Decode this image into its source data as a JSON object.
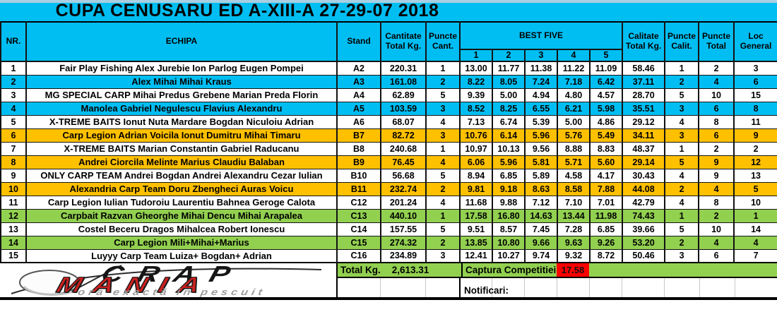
{
  "title": "CUPA CENUSARU ED A-XIII-A 27-29-07 2018",
  "colors": {
    "cyan": "#00BEF2",
    "yellow": "#FFC000",
    "green": "#92D050",
    "red": "#FF0000"
  },
  "header": {
    "nr": "NR.",
    "echipa": "ECHIPA",
    "stand": "Stand",
    "cantitate": "Cantitate Total Kg.",
    "puncte_cant": "Puncte Cant.",
    "best_five": "BEST FIVE",
    "best_cols": [
      "1",
      "2",
      "3",
      "4",
      "5"
    ],
    "calitate": "Calitate Total Kg.",
    "puncte_calit": "Puncte Calit.",
    "puncte_total": "Puncte Total",
    "loc_general": "Loc General"
  },
  "rows": [
    {
      "nr": "1",
      "team": "Fair Play Fishing  Alex Jurebie Ion Parlog Eugen Pompei",
      "stand": "A2",
      "total_kg": "220.31",
      "pct_cant": "1",
      "best": [
        "13.00",
        "11.77",
        "11.38",
        "11.22",
        "11.09"
      ],
      "calitate_kg": "58.46",
      "pct_calit": "1",
      "pct_total": "2",
      "loc": "3",
      "highlight": "none"
    },
    {
      "nr": "2",
      "team": "Alex Mihai Mihai Kraus",
      "stand": "A3",
      "total_kg": "161.08",
      "pct_cant": "2",
      "best": [
        "8.22",
        "8.05",
        "7.24",
        "7.18",
        "6.42"
      ],
      "calitate_kg": "37.11",
      "pct_calit": "2",
      "pct_total": "4",
      "loc": "6",
      "highlight": "cyan"
    },
    {
      "nr": "3",
      "team": "MG SPECIAL CARP Mihai Predus Grebene Marian Preda Florin",
      "stand": "A4",
      "total_kg": "62.89",
      "pct_cant": "5",
      "best": [
        "9.39",
        "5.00",
        "4.94",
        "4.80",
        "4.57"
      ],
      "calitate_kg": "28.70",
      "pct_calit": "5",
      "pct_total": "10",
      "loc": "15",
      "highlight": "none"
    },
    {
      "nr": "4",
      "team": "Manolea Gabriel Negulescu Flavius Alexandru",
      "stand": "A5",
      "total_kg": "103.59",
      "pct_cant": "3",
      "best": [
        "8.52",
        "8.25",
        "6.55",
        "6.21",
        "5.98"
      ],
      "calitate_kg": "35.51",
      "pct_calit": "3",
      "pct_total": "6",
      "loc": "8",
      "highlight": "cyan"
    },
    {
      "nr": "5",
      "team": "X-TREME BAITS Ionut Nuta Mardare Bogdan Niculoiu Adrian",
      "stand": "A6",
      "total_kg": "68.07",
      "pct_cant": "4",
      "best": [
        "7.13",
        "6.74",
        "5.39",
        "5.00",
        "4.86"
      ],
      "calitate_kg": "29.12",
      "pct_calit": "4",
      "pct_total": "8",
      "loc": "11",
      "highlight": "none"
    },
    {
      "nr": "6",
      "team": "Carp Legion Adrian Voicila Ionut Dumitru Mihai Timaru",
      "stand": "B7",
      "total_kg": "82.72",
      "pct_cant": "3",
      "best": [
        "10.76",
        "6.14",
        "5.96",
        "5.76",
        "5.49"
      ],
      "calitate_kg": "34.11",
      "pct_calit": "3",
      "pct_total": "6",
      "loc": "9",
      "highlight": "yellow"
    },
    {
      "nr": "7",
      "team": "X-TREME BAITS  Marian Constantin Gabriel Raducanu",
      "stand": "B8",
      "total_kg": "240.68",
      "pct_cant": "1",
      "best": [
        "10.97",
        "10.13",
        "9.56",
        "8.88",
        "8.83"
      ],
      "calitate_kg": "48.37",
      "pct_calit": "1",
      "pct_total": "2",
      "loc": "2",
      "highlight": "none"
    },
    {
      "nr": "8",
      "team": "Andrei Ciorcila Melinte Marius Claudiu Balaban",
      "stand": "B9",
      "total_kg": "76.45",
      "pct_cant": "4",
      "best": [
        "6.06",
        "5.96",
        "5.81",
        "5.71",
        "5.60"
      ],
      "calitate_kg": "29.14",
      "pct_calit": "5",
      "pct_total": "9",
      "loc": "12",
      "highlight": "yellow"
    },
    {
      "nr": "9",
      "team": "ONLY CARP TEAM Andrei Bogdan Andrei Alexandru Cezar Iulian",
      "stand": "B10",
      "total_kg": "56.68",
      "pct_cant": "5",
      "best": [
        "8.94",
        "6.85",
        "5.89",
        "4.58",
        "4.17"
      ],
      "calitate_kg": "30.43",
      "pct_calit": "4",
      "pct_total": "9",
      "loc": "13",
      "highlight": "none"
    },
    {
      "nr": "10",
      "team": "Alexandria Carp Team Doru Zbengheci Auras Voicu",
      "stand": "B11",
      "total_kg": "232.74",
      "pct_cant": "2",
      "best": [
        "9.81",
        "9.18",
        "8.63",
        "8.58",
        "7.88"
      ],
      "calitate_kg": "44.08",
      "pct_calit": "2",
      "pct_total": "4",
      "loc": "5",
      "highlight": "yellow"
    },
    {
      "nr": "11",
      "team": "Carp Legion Iulian Tudoroiu Laurentiu Bahnea Geroge Calota",
      "stand": "C12",
      "total_kg": "201.24",
      "pct_cant": "4",
      "best": [
        "11.68",
        "9.88",
        "7.12",
        "7.10",
        "7.01"
      ],
      "calitate_kg": "42.79",
      "pct_calit": "4",
      "pct_total": "8",
      "loc": "10",
      "highlight": "none"
    },
    {
      "nr": "12",
      "team": "Carpbait Razvan Gheorghe Mihai Dencu Mihai Arapalea",
      "stand": "C13",
      "total_kg": "440.10",
      "pct_cant": "1",
      "best": [
        "17.58",
        "16.80",
        "14.63",
        "13.44",
        "11.98"
      ],
      "calitate_kg": "74.43",
      "pct_calit": "1",
      "pct_total": "2",
      "loc": "1",
      "highlight": "green"
    },
    {
      "nr": "13",
      "team": "Costel Beceru Dragos Mihalcea Robert Ionescu",
      "stand": "C14",
      "total_kg": "157.55",
      "pct_cant": "5",
      "best": [
        "9.51",
        "8.57",
        "7.45",
        "7.28",
        "6.85"
      ],
      "calitate_kg": "39.66",
      "pct_calit": "5",
      "pct_total": "10",
      "loc": "14",
      "highlight": "none"
    },
    {
      "nr": "14",
      "team": "Carp Legion Mili+Mihai+Marius",
      "stand": "C15",
      "total_kg": "274.32",
      "pct_cant": "2",
      "best": [
        "13.85",
        "10.80",
        "9.66",
        "9.63",
        "9.26"
      ],
      "calitate_kg": "53.20",
      "pct_calit": "2",
      "pct_total": "4",
      "loc": "4",
      "highlight": "green"
    },
    {
      "nr": "15",
      "team": "Luyyy Carp Team Luiza+ Bogdan+ Adrian",
      "stand": "C16",
      "total_kg": "234.89",
      "pct_cant": "3",
      "best": [
        "12.41",
        "10.27",
        "9.74",
        "9.32",
        "8.72"
      ],
      "calitate_kg": "50.46",
      "pct_calit": "3",
      "pct_total": "6",
      "loc": "7",
      "highlight": "none"
    }
  ],
  "footer": {
    "total_label": "Total Kg.",
    "total_value": "2,613.31",
    "captura_label": "Captura Competitiei:",
    "captura_value": "17.58",
    "notificari_label": "Notificari:"
  },
  "logo": {
    "line1": "CRAP",
    "line2": "MANIA",
    "tagline": "ora exactă in pescuit"
  }
}
